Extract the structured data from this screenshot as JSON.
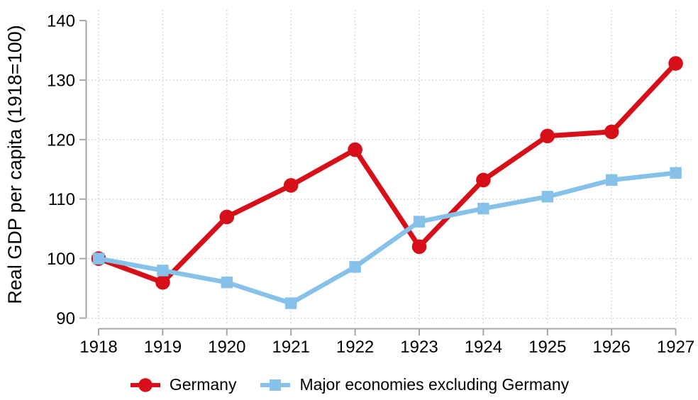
{
  "chart_data": {
    "type": "line",
    "title": "",
    "xlabel": "",
    "ylabel": "Real GDP per capita (1918=100)",
    "x": [
      1918,
      1919,
      1920,
      1921,
      1922,
      1923,
      1924,
      1925,
      1926,
      1927
    ],
    "xtick_labels": [
      "1918",
      "1919",
      "1920",
      "1921",
      "1922",
      "1923",
      "1924",
      "1925",
      "1926",
      "1927"
    ],
    "yticks": [
      90,
      100,
      110,
      120,
      130,
      140
    ],
    "ylim": [
      90,
      140
    ],
    "grid": true,
    "grid_style": "dotted",
    "legend_position": "bottom-center",
    "series": [
      {
        "name": "Germany",
        "marker": "circle",
        "color": "#d60f18",
        "values": [
          100,
          96,
          107,
          112.3,
          118.3,
          102,
          113.2,
          120.6,
          121.3,
          132.8
        ]
      },
      {
        "name": "Major economies excluding Germany",
        "marker": "square",
        "color": "#85c1e9",
        "values": [
          100,
          98,
          96,
          92.5,
          98.6,
          106.2,
          108.4,
          110.4,
          113.2,
          114.4
        ]
      }
    ]
  },
  "style": {
    "axis_line_color": "#a6a6a6",
    "grid_color": "#d2d2d2",
    "text_color": "#000000",
    "background": "#ffffff"
  }
}
